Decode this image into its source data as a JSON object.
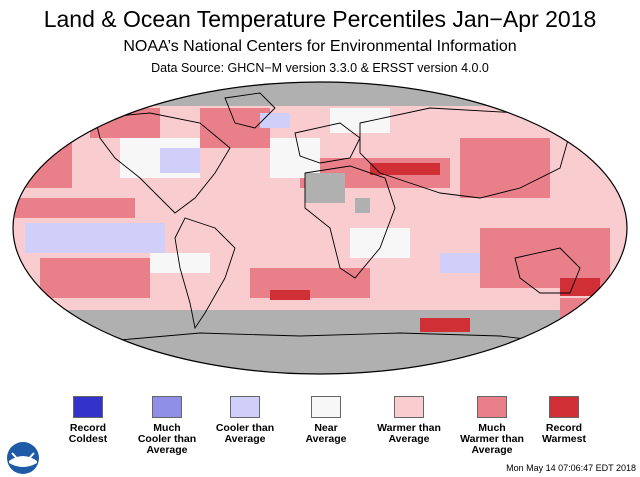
{
  "title": "Land & Ocean Temperature Percentiles Jan−Apr 2018",
  "subtitle": "NOAA’s National Centers for Environmental Information",
  "source": "Data Source: GHCN−M version 3.3.0 & ERSST version 4.0.0",
  "legend": [
    {
      "label": "Record\nColdest",
      "color": "#3333cc"
    },
    {
      "label": "Much\nCooler than\nAverage",
      "color": "#8f8fe8"
    },
    {
      "label": "Cooler than\nAverage",
      "color": "#cfcff9"
    },
    {
      "label": "Near\nAverage",
      "color": "#f7f7f7"
    },
    {
      "label": "Warmer than\nAverage",
      "color": "#f9cccf"
    },
    {
      "label": "Much\nWarmer than\nAverage",
      "color": "#e98089"
    },
    {
      "label": "Record\nWarmest",
      "color": "#cf2f35"
    }
  ],
  "missing_color": "#b0b0b0",
  "logo": {
    "text": "NOAA"
  },
  "timestamp": "Mon May 14 07:06:47 EDT 2018"
}
